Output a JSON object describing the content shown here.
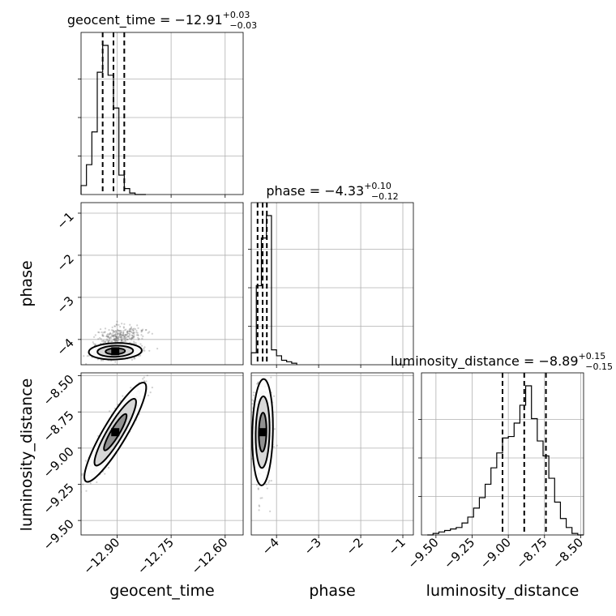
{
  "chart_data": {
    "type": "corner",
    "parameters": [
      "geocent_time",
      "phase",
      "luminosity_distance"
    ],
    "axis_labels": {
      "geocent_time": "geocent_time",
      "phase": "phase",
      "luminosity_distance": "luminosity_distance"
    },
    "titles": {
      "geocent_time": {
        "name": "geocent_time",
        "median": "−12.91",
        "plus": "+0.03",
        "minus": "−0.03"
      },
      "phase": {
        "name": "phase",
        "median": "−4.33",
        "plus": "+0.10",
        "minus": "−0.12"
      },
      "luminosity_distance": {
        "name": "luminosity_distance",
        "median": "−8.89",
        "plus": "+0.15",
        "minus": "−0.15"
      }
    },
    "ranges": {
      "geocent_time": [
        -13.0,
        -12.55
      ],
      "phase": [
        -4.6,
        -0.75
      ],
      "luminosity_distance": [
        -9.6,
        -8.48
      ]
    },
    "ticks": {
      "geocent_time": {
        "values": [
          -12.9,
          -12.75,
          -12.6
        ],
        "labels": [
          "−12.90",
          "−12.75",
          "−12.60"
        ]
      },
      "phase": {
        "values": [
          -4,
          -3,
          -2,
          -1
        ],
        "labels": [
          "−4",
          "−3",
          "−2",
          "−1"
        ]
      },
      "luminosity_distance_x": {
        "values": [
          -9.5,
          -9.25,
          -9.0,
          -8.75,
          -8.5
        ],
        "labels": [
          "−9.50",
          "−9.25",
          "−9.00",
          "−8.75",
          "−8.50"
        ]
      },
      "luminosity_distance_y": {
        "values": [
          -9.5,
          -9.25,
          -9.0,
          -8.75,
          -8.5
        ],
        "labels": [
          "−9.50",
          "−9.25",
          "−9.00",
          "−8.75",
          "−8.50"
        ]
      }
    },
    "quantiles": {
      "geocent_time": [
        -12.94,
        -12.91,
        -12.88
      ],
      "phase": [
        -4.45,
        -4.33,
        -4.23
      ],
      "luminosity_distance": [
        -9.04,
        -8.89,
        -8.74
      ]
    },
    "histograms": {
      "geocent_time": {
        "edges": [
          -13.0,
          -12.985,
          -12.97,
          -12.955,
          -12.94,
          -12.925,
          -12.91,
          -12.895,
          -12.88,
          -12.865,
          -12.85,
          -12.835,
          -12.82
        ],
        "counts": [
          0.06,
          0.2,
          0.42,
          0.82,
          1.0,
          0.8,
          0.58,
          0.13,
          0.04,
          0.01,
          0,
          0
        ]
      },
      "phase": {
        "edges": [
          -4.6,
          -4.48,
          -4.36,
          -4.24,
          -4.12,
          -4.0,
          -3.88,
          -3.76,
          -3.64,
          -3.52
        ],
        "counts": [
          0.08,
          0.53,
          0.85,
          1.0,
          0.1,
          0.06,
          0.03,
          0.02,
          0.01
        ]
      },
      "luminosity_distance": {
        "edges": [
          -9.56,
          -9.52,
          -9.48,
          -9.44,
          -9.4,
          -9.36,
          -9.32,
          -9.28,
          -9.24,
          -9.2,
          -9.16,
          -9.12,
          -9.08,
          -9.04,
          -9.0,
          -8.96,
          -8.92,
          -8.88,
          -8.84,
          -8.8,
          -8.76,
          -8.72,
          -8.68,
          -8.64,
          -8.6,
          -8.56,
          -8.52,
          -8.48
        ],
        "counts": [
          0,
          0.01,
          0.02,
          0.03,
          0.04,
          0.05,
          0.08,
          0.12,
          0.18,
          0.25,
          0.34,
          0.45,
          0.55,
          0.65,
          0.66,
          0.75,
          0.87,
          1.0,
          0.78,
          0.63,
          0.53,
          0.38,
          0.22,
          0.11,
          0.05,
          0.01,
          0
        ]
      }
    },
    "pairs": [
      {
        "x": "geocent_time",
        "y": "phase",
        "center": [
          -12.905,
          -4.28
        ],
        "spread": [
          0.03,
          0.08
        ],
        "rho": 0.1,
        "secondary": {
          "center": [
            -12.89,
            -3.9
          ],
          "spread": [
            0.03,
            0.12
          ]
        }
      },
      {
        "x": "geocent_time",
        "y": "luminosity_distance",
        "center": [
          -12.905,
          -8.89
        ],
        "spread": [
          0.035,
          0.14
        ],
        "rho": 0.9
      },
      {
        "x": "phase",
        "y": "luminosity_distance",
        "center": [
          -4.33,
          -8.89
        ],
        "spread": [
          0.1,
          0.15
        ],
        "rho": 0.1
      }
    ]
  }
}
